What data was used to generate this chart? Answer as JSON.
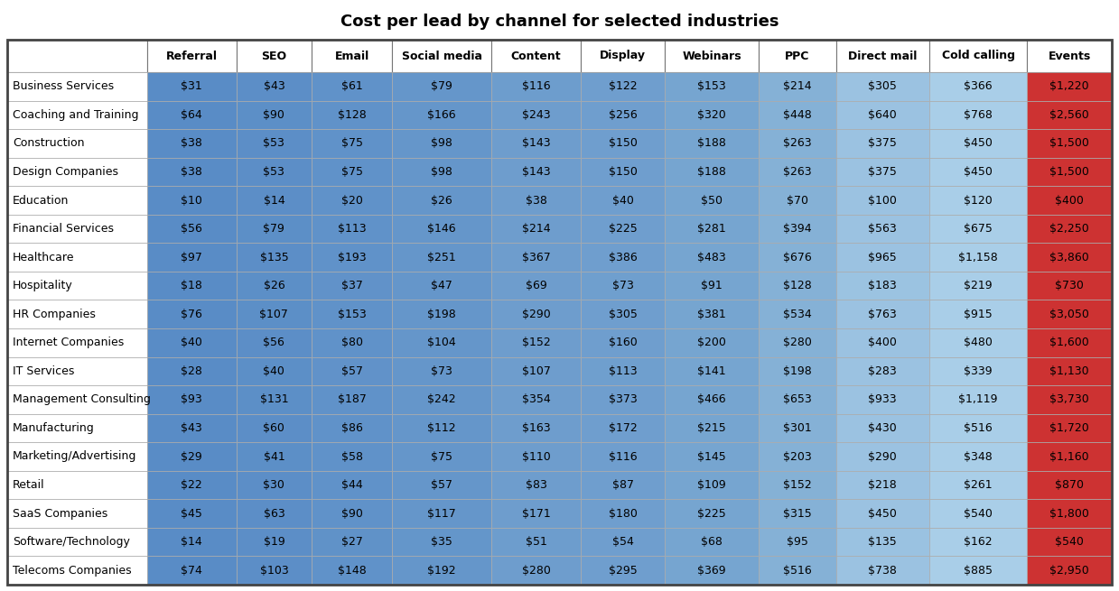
{
  "title": "Cost per lead by channel for selected industries",
  "columns": [
    "Referral",
    "SEO",
    "Email",
    "Social media",
    "Content",
    "Display",
    "Webinars",
    "PPC",
    "Direct mail",
    "Cold calling",
    "Events"
  ],
  "industries": [
    "Business Services",
    "Coaching and Training",
    "Construction",
    "Design Companies",
    "Education",
    "Financial Services",
    "Healthcare",
    "Hospitality",
    "HR Companies",
    "Internet Companies",
    "IT Services",
    "Management Consulting",
    "Manufacturing",
    "Marketing/Advertising",
    "Retail",
    "SaaS Companies",
    "Software/Technology",
    "Telecoms Companies"
  ],
  "values": [
    [
      31,
      43,
      61,
      79,
      116,
      122,
      153,
      214,
      305,
      366,
      1220
    ],
    [
      64,
      90,
      128,
      166,
      243,
      256,
      320,
      448,
      640,
      768,
      2560
    ],
    [
      38,
      53,
      75,
      98,
      143,
      150,
      188,
      263,
      375,
      450,
      1500
    ],
    [
      38,
      53,
      75,
      98,
      143,
      150,
      188,
      263,
      375,
      450,
      1500
    ],
    [
      10,
      14,
      20,
      26,
      38,
      40,
      50,
      70,
      100,
      120,
      400
    ],
    [
      56,
      79,
      113,
      146,
      214,
      225,
      281,
      394,
      563,
      675,
      2250
    ],
    [
      97,
      135,
      193,
      251,
      367,
      386,
      483,
      676,
      965,
      1158,
      3860
    ],
    [
      18,
      26,
      37,
      47,
      69,
      73,
      91,
      128,
      183,
      219,
      730
    ],
    [
      76,
      107,
      153,
      198,
      290,
      305,
      381,
      534,
      763,
      915,
      3050
    ],
    [
      40,
      56,
      80,
      104,
      152,
      160,
      200,
      280,
      400,
      480,
      1600
    ],
    [
      28,
      40,
      57,
      73,
      107,
      113,
      141,
      198,
      283,
      339,
      1130
    ],
    [
      93,
      131,
      187,
      242,
      354,
      373,
      466,
      653,
      933,
      1119,
      3730
    ],
    [
      43,
      60,
      86,
      112,
      163,
      172,
      215,
      301,
      430,
      516,
      1720
    ],
    [
      29,
      41,
      58,
      75,
      110,
      116,
      145,
      203,
      290,
      348,
      1160
    ],
    [
      22,
      30,
      44,
      57,
      83,
      87,
      109,
      152,
      218,
      261,
      870
    ],
    [
      45,
      63,
      90,
      117,
      171,
      180,
      225,
      315,
      450,
      540,
      1800
    ],
    [
      14,
      19,
      27,
      35,
      51,
      54,
      68,
      95,
      135,
      162,
      540
    ],
    [
      74,
      103,
      148,
      192,
      280,
      295,
      369,
      516,
      738,
      885,
      2950
    ]
  ],
  "title_fontsize": 13,
  "header_fontsize": 9,
  "cell_fontsize": 9,
  "row_label_fontsize": 9,
  "blue_dark": [
    89,
    140,
    198
  ],
  "blue_mid": [
    132,
    176,
    213
  ],
  "blue_light": [
    174,
    210,
    235
  ],
  "blue_vlight": [
    210,
    228,
    242
  ],
  "white": [
    245,
    245,
    245
  ],
  "red_vlight": [
    252,
    220,
    215
  ],
  "red_light": [
    248,
    180,
    170
  ],
  "red_mid": [
    240,
    128,
    120
  ],
  "red_dark": [
    220,
    70,
    60
  ],
  "red_vivid": [
    205,
    50,
    50
  ]
}
